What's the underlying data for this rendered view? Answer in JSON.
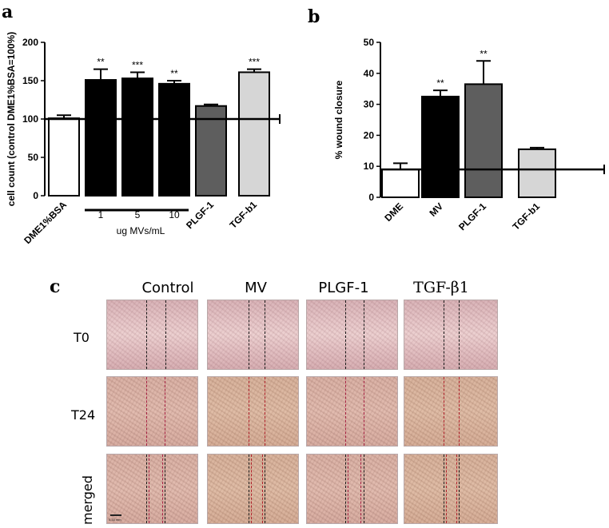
{
  "panels": {
    "a": "a",
    "b": "b",
    "c": "c"
  },
  "chart_data": [
    {
      "type": "bar",
      "panel": "a",
      "ylabel": "cell count (control  DME1%BSA=100%)",
      "ylim": [
        0,
        200
      ],
      "yticks": [
        "0",
        "50",
        "100",
        "150",
        "200"
      ],
      "categories": [
        "DME1%BSA",
        "1",
        "5",
        "10",
        "PLGF-1",
        "TGF-b1"
      ],
      "values": [
        101,
        151,
        153,
        146,
        117,
        161
      ],
      "errors": [
        4,
        14,
        8,
        4,
        2,
        4
      ],
      "colors": [
        "#ffffff",
        "#000000",
        "#000000",
        "#000000",
        "#5e5e5e",
        "#d6d6d6"
      ],
      "significance": [
        "",
        "**",
        "***",
        "**",
        "",
        "***"
      ],
      "rotated_labels": [
        "DME1%BSA",
        "PLGF-1",
        "TGF-b1"
      ],
      "group_label": "ug MVs/mL",
      "reference_line": 100
    },
    {
      "type": "bar",
      "panel": "b",
      "ylabel": "% wound closure",
      "ylim": [
        0,
        50
      ],
      "yticks": [
        "0",
        "10",
        "20",
        "30",
        "40",
        "50"
      ],
      "categories": [
        "DME",
        "MV",
        "PLGF-1",
        "TGF-b1"
      ],
      "values": [
        9,
        32.5,
        36.5,
        15.5
      ],
      "errors": [
        2,
        2,
        7.5,
        0.5
      ],
      "colors": [
        "#ffffff",
        "#000000",
        "#5e5e5e",
        "#d6d6d6"
      ],
      "significance": [
        "",
        "**",
        "**",
        ""
      ],
      "reference_line": 9
    }
  ],
  "micrographs": {
    "columns": [
      "Control",
      "MV",
      "PLGF-1",
      "TGF-β1"
    ],
    "rows": [
      "T0",
      "T24",
      "merged"
    ],
    "scale_label": "0.33 mm"
  }
}
